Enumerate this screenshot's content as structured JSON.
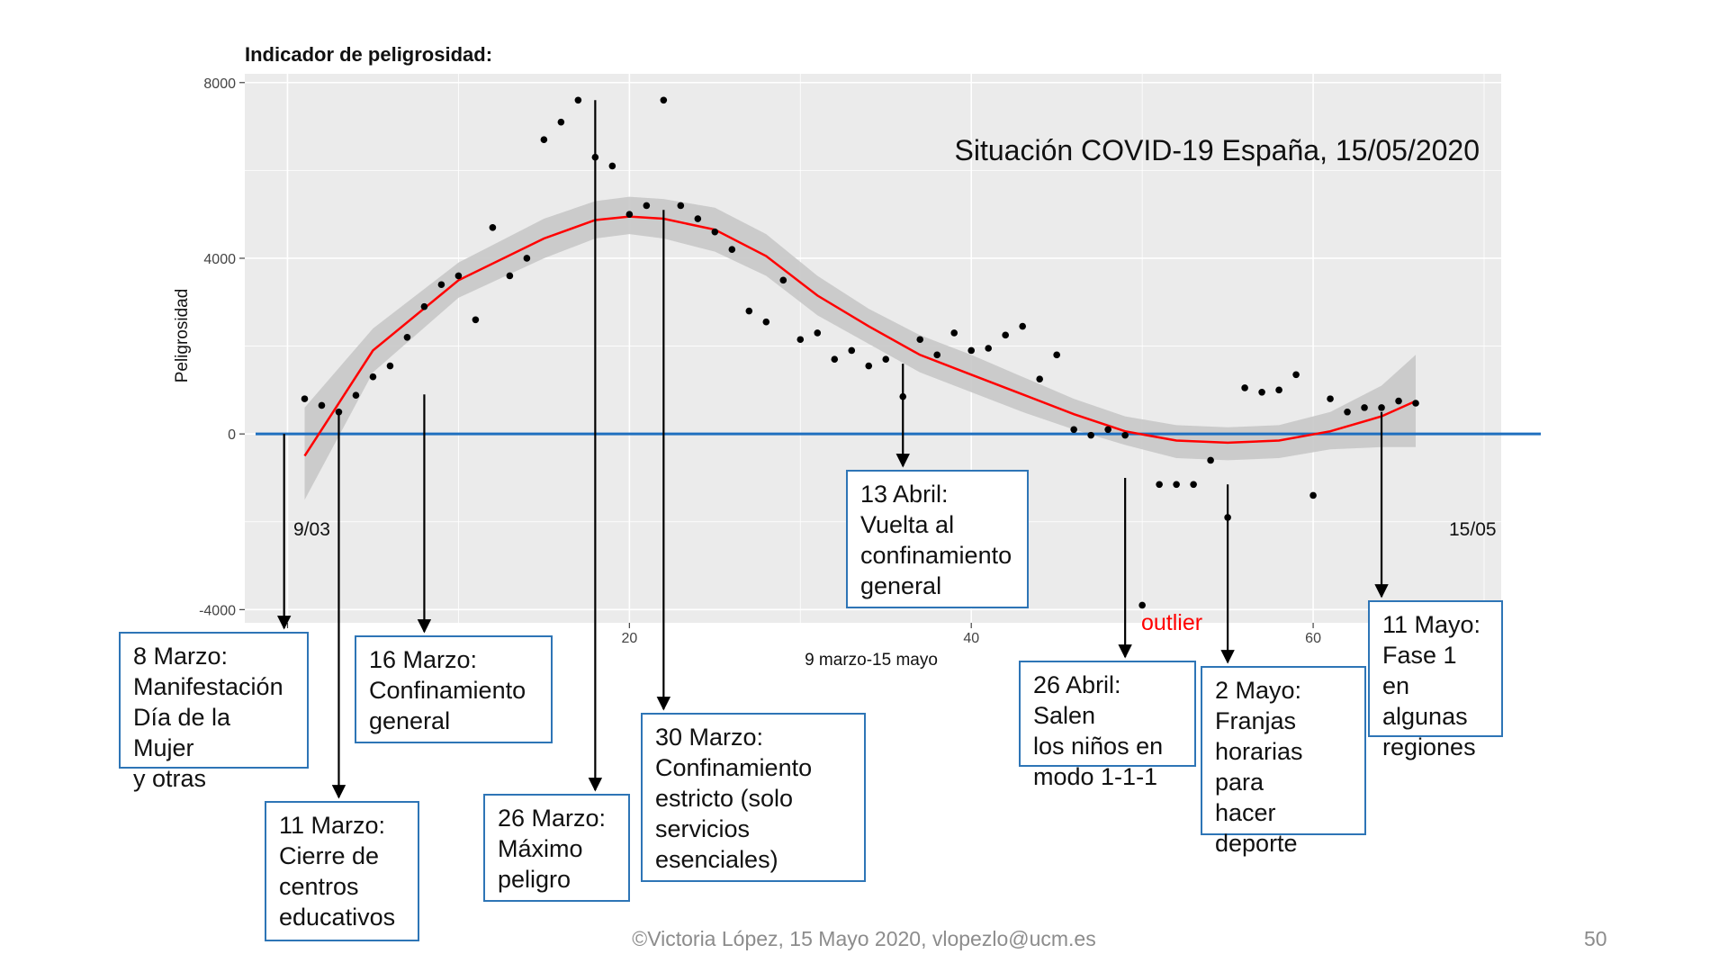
{
  "chart_data": {
    "type": "scatter",
    "title": "Indicador de peligrosidad:",
    "subtitle": "Situación COVID-19 España, 15/05/2020",
    "xlabel": "9 marzo-15 mayo",
    "ylabel": "Peligrosidad",
    "xlim": [
      -2.5,
      71
    ],
    "ylim": [
      -4300,
      8200
    ],
    "x_ticks": [
      0,
      20,
      40,
      60
    ],
    "y_ticks": [
      -4000,
      0,
      4000,
      8000
    ],
    "grid": true,
    "x_start_label": "9/03",
    "x_end_label": "15/05",
    "points": [
      [
        1,
        800
      ],
      [
        2,
        650
      ],
      [
        3,
        500
      ],
      [
        4,
        880
      ],
      [
        5,
        1300
      ],
      [
        6,
        1550
      ],
      [
        7,
        2200
      ],
      [
        8,
        2900
      ],
      [
        9,
        3400
      ],
      [
        10,
        3600
      ],
      [
        11,
        2600
      ],
      [
        12,
        4700
      ],
      [
        13,
        3600
      ],
      [
        14,
        4000
      ],
      [
        15,
        6700
      ],
      [
        16,
        7100
      ],
      [
        17,
        7600
      ],
      [
        18,
        6300
      ],
      [
        19,
        6100
      ],
      [
        20,
        5000
      ],
      [
        21,
        5200
      ],
      [
        22,
        7600
      ],
      [
        23,
        5200
      ],
      [
        24,
        4900
      ],
      [
        25,
        4600
      ],
      [
        26,
        4200
      ],
      [
        27,
        2800
      ],
      [
        28,
        2550
      ],
      [
        29,
        3500
      ],
      [
        30,
        2150
      ],
      [
        31,
        2300
      ],
      [
        32,
        1700
      ],
      [
        33,
        1900
      ],
      [
        34,
        1550
      ],
      [
        35,
        1700
      ],
      [
        36,
        850
      ],
      [
        37,
        2150
      ],
      [
        38,
        1800
      ],
      [
        39,
        2300
      ],
      [
        40,
        1900
      ],
      [
        41,
        1950
      ],
      [
        42,
        2250
      ],
      [
        43,
        2450
      ],
      [
        44,
        1250
      ],
      [
        45,
        1800
      ],
      [
        46,
        100
      ],
      [
        47,
        -30
      ],
      [
        48,
        100
      ],
      [
        49,
        -30
      ],
      [
        50,
        -3900
      ],
      [
        51,
        -1150
      ],
      [
        52,
        -1150
      ],
      [
        53,
        -1150
      ],
      [
        54,
        -600
      ],
      [
        55,
        -1900
      ],
      [
        56,
        1050
      ],
      [
        57,
        950
      ],
      [
        58,
        1000
      ],
      [
        59,
        1350
      ],
      [
        60,
        -1400
      ],
      [
        61,
        800
      ],
      [
        62,
        500
      ],
      [
        63,
        600
      ],
      [
        64,
        600
      ],
      [
        65,
        750
      ],
      [
        66,
        700
      ]
    ],
    "trend": [
      [
        1,
        -500
      ],
      [
        5,
        1900
      ],
      [
        10,
        3500
      ],
      [
        15,
        4450
      ],
      [
        18,
        4870
      ],
      [
        20,
        4950
      ],
      [
        22,
        4900
      ],
      [
        25,
        4650
      ],
      [
        28,
        4050
      ],
      [
        31,
        3150
      ],
      [
        34,
        2450
      ],
      [
        37,
        1800
      ],
      [
        40,
        1350
      ],
      [
        43,
        900
      ],
      [
        46,
        450
      ],
      [
        49,
        60
      ],
      [
        52,
        -150
      ],
      [
        55,
        -200
      ],
      [
        58,
        -150
      ],
      [
        61,
        60
      ],
      [
        64,
        400
      ],
      [
        66,
        750
      ]
    ],
    "band_upper": [
      [
        1,
        600
      ],
      [
        5,
        2400
      ],
      [
        10,
        3900
      ],
      [
        15,
        4900
      ],
      [
        18,
        5300
      ],
      [
        20,
        5400
      ],
      [
        22,
        5350
      ],
      [
        25,
        5150
      ],
      [
        28,
        4550
      ],
      [
        31,
        3600
      ],
      [
        34,
        2850
      ],
      [
        37,
        2250
      ],
      [
        40,
        1800
      ],
      [
        43,
        1300
      ],
      [
        46,
        800
      ],
      [
        49,
        400
      ],
      [
        52,
        200
      ],
      [
        55,
        150
      ],
      [
        58,
        200
      ],
      [
        61,
        500
      ],
      [
        64,
        1100
      ],
      [
        66,
        1800
      ]
    ],
    "band_lower": [
      [
        1,
        -1500
      ],
      [
        5,
        1400
      ],
      [
        10,
        3100
      ],
      [
        15,
        4000
      ],
      [
        18,
        4450
      ],
      [
        20,
        4550
      ],
      [
        22,
        4450
      ],
      [
        25,
        4150
      ],
      [
        28,
        3600
      ],
      [
        31,
        2700
      ],
      [
        34,
        2050
      ],
      [
        37,
        1400
      ],
      [
        40,
        950
      ],
      [
        43,
        500
      ],
      [
        46,
        100
      ],
      [
        49,
        -250
      ],
      [
        52,
        -550
      ],
      [
        55,
        -600
      ],
      [
        58,
        -550
      ],
      [
        61,
        -350
      ],
      [
        64,
        -300
      ],
      [
        66,
        -300
      ]
    ],
    "zero_line": 0,
    "outlier_label": "outlier",
    "colors": {
      "panel": "#ebebeb",
      "grid": "#ffffff",
      "points": "#000000",
      "trend": "#ff0000",
      "band": "#c8c8c8",
      "zero_line": "#1f6fbf",
      "outlier": "#ff0000",
      "box_border": "#2e75b6"
    }
  },
  "annotations": [
    {
      "text": "8 Marzo:\nManifestación\nDía de la Mujer\ny otras",
      "arrow_x": -0.2,
      "arrow_from": 0
    },
    {
      "text": "11 Marzo:\nCierre de\ncentros\neducativos",
      "arrow_x": 3,
      "arrow_from": 500
    },
    {
      "text": "16 Marzo:\nConfinamiento\ngeneral",
      "arrow_x": 8,
      "arrow_from": 900
    },
    {
      "text": "26 Marzo:\nMáximo\npeligro",
      "arrow_x": 18,
      "arrow_from": 7600
    },
    {
      "text": "30 Marzo:\nConfinamiento\nestricto (solo\nservicios\nesenciales)",
      "arrow_x": 22,
      "arrow_from": 5100
    },
    {
      "text": "13 Abril:\nVuelta al\nconfinamiento\ngeneral",
      "arrow_x": 36,
      "arrow_from": 1600
    },
    {
      "text": "26 Abril: Salen\nlos niños en\nmodo 1-1-1",
      "arrow_x": 49,
      "arrow_from": -1000
    },
    {
      "text": "2 Mayo:\nFranjas\nhorarias para\nhacer\ndeporte",
      "arrow_x": 55,
      "arrow_from": -1150
    },
    {
      "text": "11 Mayo:\nFase 1 en\nalgunas\nregiones",
      "arrow_x": 64,
      "arrow_from": 500
    }
  ],
  "footer": "©Victoria López, 15 Mayo 2020, vlopezlo@ucm.es",
  "page_number": "50"
}
